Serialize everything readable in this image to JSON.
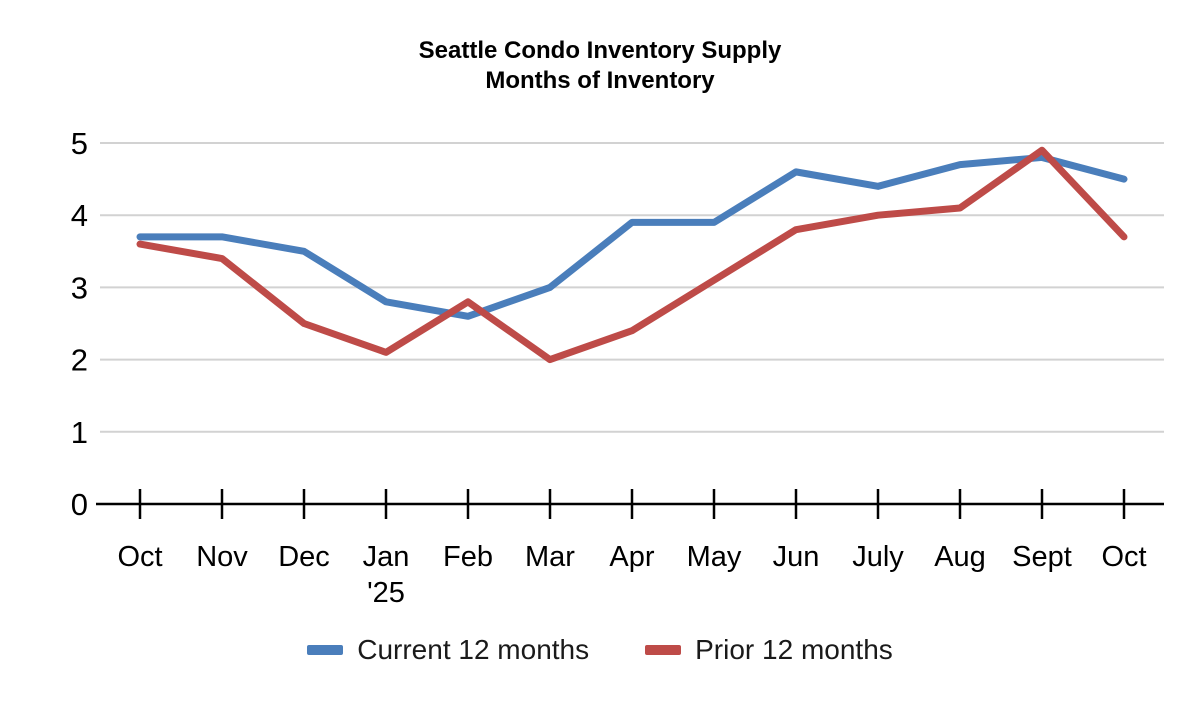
{
  "chart_data": {
    "type": "line",
    "title": "Seattle Condo Inventory Supply — Months of Inventory",
    "title_lines": [
      "Seattle Condo Inventory Supply",
      "Months of Inventory"
    ],
    "categories": [
      "Oct",
      "Nov",
      "Dec",
      "Jan",
      "Feb",
      "Mar",
      "Apr",
      "May",
      "Jun",
      "July",
      "Aug",
      "Sept",
      "Oct"
    ],
    "x_sublabel": {
      "index": 3,
      "text": "'25"
    },
    "series": [
      {
        "name": "Current 12 months",
        "color": "#4A7EBB",
        "values": [
          3.7,
          3.7,
          3.5,
          2.8,
          2.6,
          3.0,
          3.9,
          3.9,
          4.6,
          4.4,
          4.7,
          4.8,
          4.5
        ]
      },
      {
        "name": "Prior 12 months",
        "color": "#BE4B48",
        "values": [
          3.6,
          3.4,
          2.5,
          2.1,
          2.8,
          2.0,
          2.4,
          3.1,
          3.8,
          4.0,
          4.1,
          4.9,
          3.7
        ]
      }
    ],
    "xlabel": "",
    "ylabel": "",
    "y_ticks": [
      0,
      1,
      2,
      3,
      4,
      5
    ],
    "ylim": [
      0,
      5
    ],
    "grid": true,
    "legend_position": "bottom",
    "gridline_color": "#D2D2D2",
    "axis_color": "#000000",
    "background": "#FFFFFF"
  }
}
